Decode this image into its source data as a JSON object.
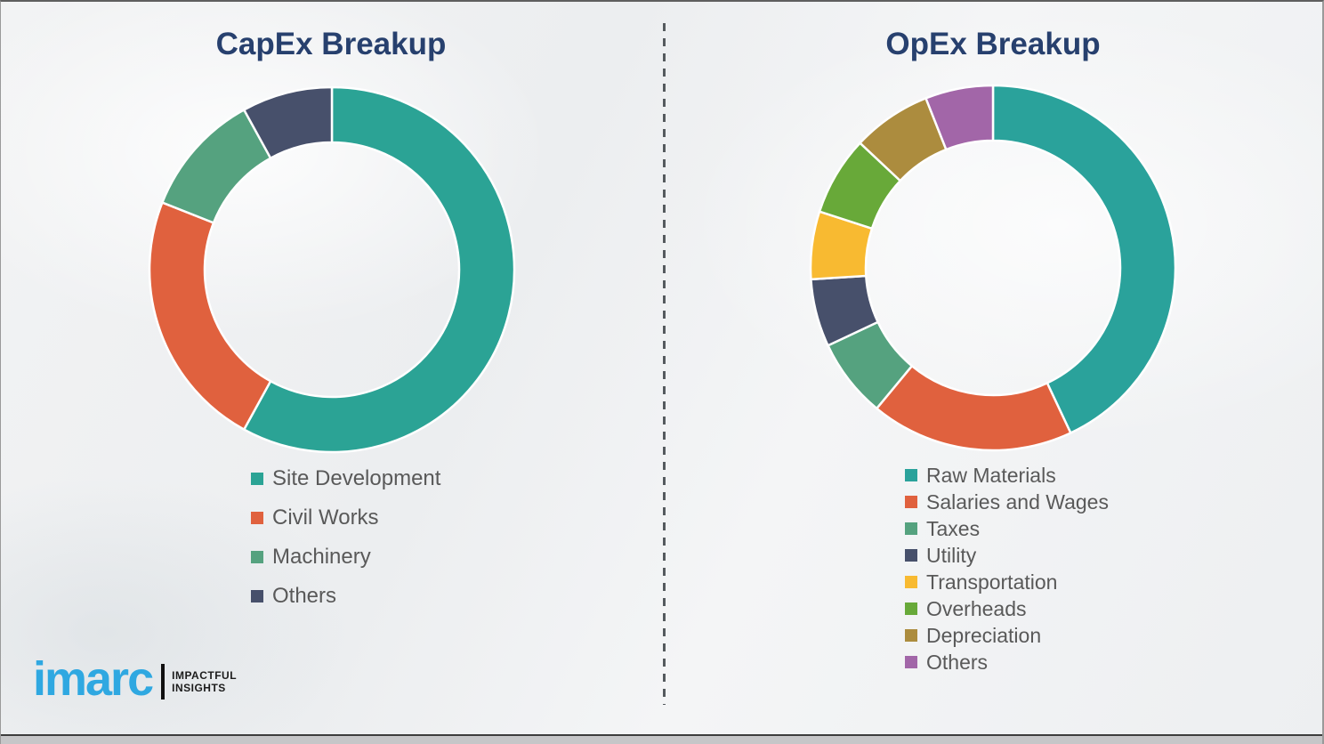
{
  "panels": {
    "capex": {
      "title": "CapEx Breakup"
    },
    "opex": {
      "title": "OpEx Breakup"
    }
  },
  "chart_data": [
    {
      "type": "pie",
      "variant": "donut",
      "title": "CapEx Breakup",
      "categories": [
        "Site Development",
        "Civil Works",
        "Machinery",
        "Others"
      ],
      "values": [
        58,
        23,
        11,
        8
      ],
      "unit": "percent-share",
      "colors": [
        "#2BA395",
        "#E0613E",
        "#55A27F",
        "#47506B"
      ],
      "start_angle_deg": 0,
      "direction": "clockwise",
      "legend_position": "below-left",
      "data_labels_shown": false
    },
    {
      "type": "pie",
      "variant": "donut",
      "title": "OpEx Breakup",
      "categories": [
        "Raw Materials",
        "Salaries and Wages",
        "Taxes",
        "Utility",
        "Transportation",
        "Overheads",
        "Depreciation",
        "Others"
      ],
      "values": [
        43,
        18,
        7,
        6,
        6,
        7,
        7,
        6
      ],
      "unit": "percent-share",
      "colors": [
        "#2AA29B",
        "#E0613E",
        "#55A27F",
        "#47506B",
        "#F8BA31",
        "#68A939",
        "#AC8C3E",
        "#A266A8"
      ],
      "start_angle_deg": 0,
      "direction": "clockwise",
      "legend_position": "below-left",
      "data_labels_shown": false
    }
  ],
  "logo": {
    "brand": "imarc",
    "brand_color": "#2FA8E1",
    "tagline_line1": "IMPACTFUL",
    "tagline_line2": "INSIGHTS"
  },
  "colors": {
    "title_text": "#27406e",
    "legend_text": "#595959",
    "divider": "#555a5e",
    "background": "#eff0f2",
    "segment_gap": "#ffffff"
  }
}
